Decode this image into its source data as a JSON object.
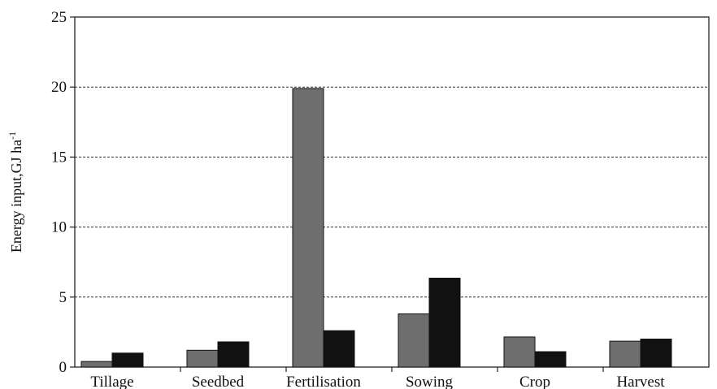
{
  "chart_data": {
    "type": "bar",
    "categories": [
      "Tillage",
      "Seedbed",
      "Fertilisation",
      "Sowing",
      "Crop",
      "Harvest"
    ],
    "series": [
      {
        "color": "#6e6e6e",
        "values": [
          0.4,
          1.2,
          19.9,
          3.8,
          2.15,
          1.85
        ]
      },
      {
        "color": "#111111",
        "values": [
          1.0,
          1.8,
          2.6,
          6.35,
          1.1,
          2.0
        ]
      }
    ],
    "title": "",
    "xlabel": "",
    "ylabel": "Energy input,GJ ha",
    "ylabel_superscript": "-1",
    "ylim": [
      0,
      25
    ],
    "yticks": [
      0,
      5,
      10,
      15,
      20,
      25
    ],
    "grid": "horizontal-dashed",
    "legend": "none"
  }
}
